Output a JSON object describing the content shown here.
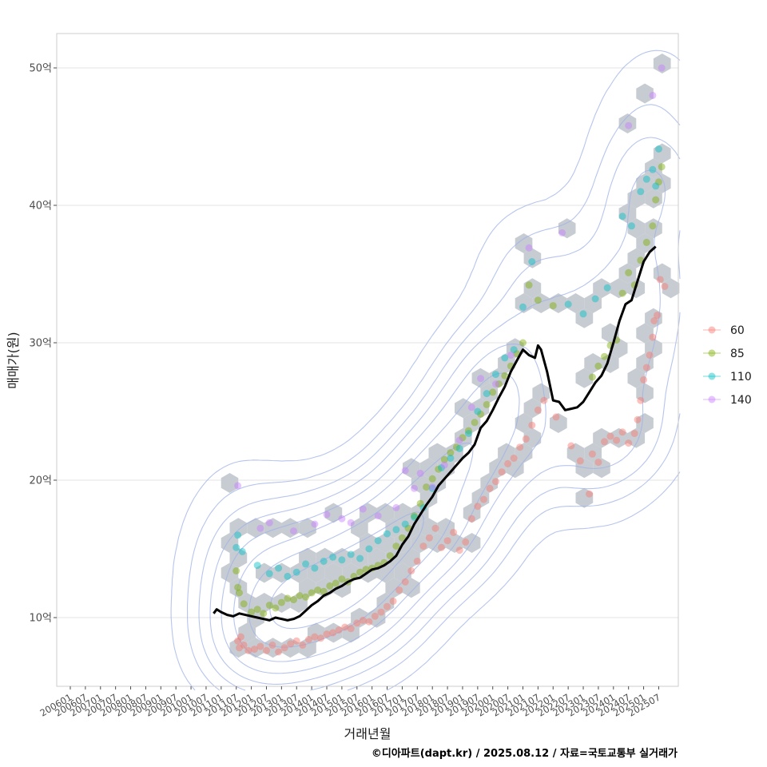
{
  "chart_data": {
    "type": "scatter",
    "xlabel": "거래년월",
    "ylabel": "매매가(원)",
    "caption": "©디아파트(dapt.kr) / 2025.08.12 / 자료=국토교통부 실거래가",
    "x_ticks": [
      "200601",
      "200607",
      "200701",
      "200707",
      "200801",
      "200807",
      "200901",
      "200907",
      "201001",
      "201007",
      "201101",
      "201107",
      "201201",
      "201207",
      "201301",
      "201307",
      "201401",
      "201407",
      "201501",
      "201507",
      "201601",
      "201607",
      "201701",
      "201707",
      "201801",
      "201807",
      "201901",
      "201907",
      "202001",
      "202007",
      "202101",
      "202107",
      "202201",
      "202207",
      "202301",
      "202307",
      "202401",
      "202407",
      "202501",
      "202507"
    ],
    "y_ticks": [
      {
        "value": 10,
        "label": "10억"
      },
      {
        "value": 20,
        "label": "20억"
      },
      {
        "value": 30,
        "label": "30억"
      },
      {
        "value": 40,
        "label": "40억"
      },
      {
        "value": 50,
        "label": "50억"
      }
    ],
    "ylim": [
      5,
      52.5
    ],
    "xlim": [
      2005.55,
      2026.15
    ],
    "grid": "horizontal major only",
    "legend_position": "right",
    "legend_symbol": "semi-transparent circle",
    "series": [
      {
        "name": "60",
        "color": "#f8766d",
        "points": [
          [
            2011.55,
            8.3
          ],
          [
            2011.6,
            7.8
          ],
          [
            2011.65,
            8.6
          ],
          [
            2011.75,
            8.0
          ],
          [
            2011.9,
            7.6
          ],
          [
            2012.1,
            7.7
          ],
          [
            2012.3,
            7.9
          ],
          [
            2012.5,
            7.6
          ],
          [
            2012.7,
            8.0
          ],
          [
            2012.9,
            7.5
          ],
          [
            2013.1,
            7.8
          ],
          [
            2013.3,
            8.1
          ],
          [
            2013.5,
            8.3
          ],
          [
            2013.7,
            8.0
          ],
          [
            2013.9,
            8.4
          ],
          [
            2014.1,
            8.6
          ],
          [
            2014.3,
            8.5
          ],
          [
            2014.5,
            8.8
          ],
          [
            2014.7,
            8.9
          ],
          [
            2014.9,
            9.1
          ],
          [
            2015.1,
            9.3
          ],
          [
            2015.3,
            9.2
          ],
          [
            2015.5,
            9.6
          ],
          [
            2015.7,
            9.8
          ],
          [
            2015.9,
            9.7
          ],
          [
            2016.1,
            10.1
          ],
          [
            2016.3,
            10.4
          ],
          [
            2016.5,
            10.8
          ],
          [
            2016.7,
            11.2
          ],
          [
            2016.9,
            12.0
          ],
          [
            2017.1,
            12.6
          ],
          [
            2017.3,
            13.4
          ],
          [
            2017.5,
            14.1
          ],
          [
            2017.7,
            15.2
          ],
          [
            2017.9,
            15.8
          ],
          [
            2018.1,
            16.5
          ],
          [
            2018.3,
            15.1
          ],
          [
            2018.5,
            15.6
          ],
          [
            2018.7,
            16.2
          ],
          [
            2018.9,
            14.9
          ],
          [
            2019.1,
            15.5
          ],
          [
            2019.3,
            17.2
          ],
          [
            2019.5,
            18.1
          ],
          [
            2019.7,
            18.6
          ],
          [
            2019.9,
            19.4
          ],
          [
            2020.1,
            19.9
          ],
          [
            2020.3,
            20.6
          ],
          [
            2020.5,
            21.2
          ],
          [
            2020.7,
            21.6
          ],
          [
            2020.9,
            22.4
          ],
          [
            2021.1,
            23.0
          ],
          [
            2021.3,
            24.0
          ],
          [
            2021.5,
            25.1
          ],
          [
            2021.7,
            25.8
          ],
          [
            2022.1,
            24.6
          ],
          [
            2022.6,
            22.5
          ],
          [
            2022.9,
            21.4
          ],
          [
            2023.2,
            19.0
          ],
          [
            2023.3,
            21.9
          ],
          [
            2023.5,
            21.3
          ],
          [
            2023.7,
            22.8
          ],
          [
            2023.9,
            23.2
          ],
          [
            2024.1,
            22.9
          ],
          [
            2024.3,
            23.5
          ],
          [
            2024.5,
            22.7
          ],
          [
            2024.7,
            23.4
          ],
          [
            2024.8,
            24.4
          ],
          [
            2024.9,
            25.8
          ],
          [
            2025.0,
            27.3
          ],
          [
            2025.1,
            28.2
          ],
          [
            2025.2,
            29.1
          ],
          [
            2025.3,
            30.4
          ],
          [
            2025.35,
            31.6
          ],
          [
            2025.45,
            32.0
          ],
          [
            2025.55,
            34.6
          ],
          [
            2025.7,
            34.1
          ]
        ]
      },
      {
        "name": "85",
        "color": "#7cae00",
        "points": [
          [
            2011.5,
            13.4
          ],
          [
            2011.55,
            12.2
          ],
          [
            2011.6,
            11.8
          ],
          [
            2011.75,
            11.0
          ],
          [
            2012.0,
            10.4
          ],
          [
            2012.2,
            10.6
          ],
          [
            2012.4,
            10.3
          ],
          [
            2012.6,
            10.9
          ],
          [
            2012.8,
            10.7
          ],
          [
            2013.0,
            11.1
          ],
          [
            2013.2,
            11.4
          ],
          [
            2013.4,
            11.3
          ],
          [
            2013.6,
            11.6
          ],
          [
            2013.8,
            11.5
          ],
          [
            2014.0,
            11.8
          ],
          [
            2014.2,
            12.0
          ],
          [
            2014.4,
            11.9
          ],
          [
            2014.6,
            12.3
          ],
          [
            2014.8,
            12.5
          ],
          [
            2015.0,
            12.8
          ],
          [
            2015.2,
            12.6
          ],
          [
            2015.4,
            13.0
          ],
          [
            2015.6,
            13.3
          ],
          [
            2015.8,
            13.5
          ],
          [
            2016.0,
            13.6
          ],
          [
            2016.2,
            13.8
          ],
          [
            2016.4,
            14.0
          ],
          [
            2016.6,
            14.5
          ],
          [
            2016.8,
            15.2
          ],
          [
            2017.0,
            15.8
          ],
          [
            2017.2,
            16.5
          ],
          [
            2017.4,
            17.4
          ],
          [
            2017.6,
            18.3
          ],
          [
            2017.8,
            19.5
          ],
          [
            2018.0,
            20.1
          ],
          [
            2018.2,
            20.8
          ],
          [
            2018.4,
            21.5
          ],
          [
            2018.6,
            22.0
          ],
          [
            2018.8,
            22.4
          ],
          [
            2019.0,
            23.1
          ],
          [
            2019.2,
            23.6
          ],
          [
            2019.4,
            24.2
          ],
          [
            2019.6,
            24.8
          ],
          [
            2019.8,
            25.5
          ],
          [
            2020.0,
            26.4
          ],
          [
            2020.2,
            27.0
          ],
          [
            2020.4,
            27.6
          ],
          [
            2020.6,
            28.3
          ],
          [
            2020.8,
            29.2
          ],
          [
            2021.0,
            30.0
          ],
          [
            2021.2,
            34.2
          ],
          [
            2021.5,
            33.1
          ],
          [
            2022.0,
            32.7
          ],
          [
            2023.3,
            27.5
          ],
          [
            2023.5,
            28.3
          ],
          [
            2023.7,
            29.0
          ],
          [
            2023.9,
            29.8
          ],
          [
            2024.1,
            30.2
          ],
          [
            2024.3,
            33.6
          ],
          [
            2024.5,
            35.1
          ],
          [
            2024.7,
            34.2
          ],
          [
            2024.9,
            36.0
          ],
          [
            2025.1,
            37.3
          ],
          [
            2025.3,
            38.5
          ],
          [
            2025.4,
            40.4
          ],
          [
            2025.5,
            41.7
          ],
          [
            2025.6,
            42.8
          ]
        ]
      },
      {
        "name": "110",
        "color": "#00bfc4",
        "points": [
          [
            2011.5,
            15.1
          ],
          [
            2011.55,
            16.0
          ],
          [
            2011.7,
            14.8
          ],
          [
            2012.2,
            13.8
          ],
          [
            2012.6,
            13.2
          ],
          [
            2012.9,
            13.6
          ],
          [
            2013.2,
            13.0
          ],
          [
            2013.5,
            13.3
          ],
          [
            2013.8,
            13.9
          ],
          [
            2014.1,
            13.6
          ],
          [
            2014.4,
            14.1
          ],
          [
            2014.7,
            14.4
          ],
          [
            2015.0,
            14.2
          ],
          [
            2015.3,
            14.6
          ],
          [
            2015.6,
            14.3
          ],
          [
            2015.9,
            15.0
          ],
          [
            2016.2,
            15.6
          ],
          [
            2016.5,
            16.1
          ],
          [
            2016.8,
            16.4
          ],
          [
            2017.1,
            16.8
          ],
          [
            2017.4,
            17.3
          ],
          [
            2017.7,
            18.0
          ],
          [
            2018.0,
            19.4
          ],
          [
            2018.3,
            20.9
          ],
          [
            2018.6,
            21.6
          ],
          [
            2018.9,
            22.3
          ],
          [
            2019.2,
            23.4
          ],
          [
            2019.5,
            25.0
          ],
          [
            2019.8,
            26.3
          ],
          [
            2020.1,
            27.7
          ],
          [
            2020.4,
            28.9
          ],
          [
            2020.7,
            29.5
          ],
          [
            2021.0,
            32.6
          ],
          [
            2021.3,
            35.9
          ],
          [
            2022.5,
            32.8
          ],
          [
            2023.0,
            32.1
          ],
          [
            2023.4,
            33.2
          ],
          [
            2023.8,
            34.0
          ],
          [
            2024.3,
            39.2
          ],
          [
            2024.6,
            38.5
          ],
          [
            2024.9,
            41.0
          ],
          [
            2025.1,
            41.9
          ],
          [
            2025.3,
            42.6
          ],
          [
            2025.4,
            41.4
          ],
          [
            2025.5,
            44.1
          ]
        ]
      },
      {
        "name": "140",
        "color": "#c77cff",
        "points": [
          [
            2011.55,
            19.6
          ],
          [
            2012.3,
            16.5
          ],
          [
            2012.6,
            16.9
          ],
          [
            2013.4,
            16.3
          ],
          [
            2014.1,
            16.8
          ],
          [
            2014.5,
            17.5
          ],
          [
            2015.0,
            17.2
          ],
          [
            2015.3,
            16.9
          ],
          [
            2015.7,
            17.9
          ],
          [
            2016.2,
            17.4
          ],
          [
            2016.8,
            18.0
          ],
          [
            2017.1,
            20.7
          ],
          [
            2017.4,
            19.4
          ],
          [
            2017.6,
            20.5
          ],
          [
            2018.0,
            19.5
          ],
          [
            2018.4,
            21.1
          ],
          [
            2018.9,
            22.9
          ],
          [
            2019.3,
            25.3
          ],
          [
            2019.6,
            27.4
          ],
          [
            2020.1,
            27.0
          ],
          [
            2020.6,
            29.1
          ],
          [
            2021.2,
            36.9
          ],
          [
            2022.3,
            38.0
          ],
          [
            2024.5,
            45.8
          ],
          [
            2025.3,
            48.0
          ],
          [
            2025.6,
            50.0
          ]
        ]
      }
    ],
    "median_line": [
      [
        2010.75,
        10.3
      ],
      [
        2010.85,
        10.6
      ],
      [
        2011.0,
        10.4
      ],
      [
        2011.2,
        10.2
      ],
      [
        2011.4,
        10.1
      ],
      [
        2011.6,
        10.3
      ],
      [
        2011.8,
        10.2
      ],
      [
        2012.0,
        10.1
      ],
      [
        2012.2,
        10.0
      ],
      [
        2012.4,
        9.9
      ],
      [
        2012.6,
        9.8
      ],
      [
        2012.8,
        10.0
      ],
      [
        2013.0,
        9.9
      ],
      [
        2013.2,
        9.8
      ],
      [
        2013.4,
        9.9
      ],
      [
        2013.6,
        10.1
      ],
      [
        2013.8,
        10.5
      ],
      [
        2014.0,
        10.9
      ],
      [
        2014.2,
        11.2
      ],
      [
        2014.4,
        11.6
      ],
      [
        2014.6,
        11.8
      ],
      [
        2014.8,
        12.1
      ],
      [
        2015.0,
        12.3
      ],
      [
        2015.2,
        12.6
      ],
      [
        2015.4,
        12.8
      ],
      [
        2015.6,
        12.9
      ],
      [
        2015.8,
        13.2
      ],
      [
        2016.0,
        13.5
      ],
      [
        2016.2,
        13.6
      ],
      [
        2016.4,
        13.8
      ],
      [
        2016.6,
        14.1
      ],
      [
        2016.8,
        14.5
      ],
      [
        2017.0,
        15.3
      ],
      [
        2017.2,
        15.9
      ],
      [
        2017.4,
        16.8
      ],
      [
        2017.6,
        17.5
      ],
      [
        2017.8,
        18.2
      ],
      [
        2018.0,
        18.8
      ],
      [
        2018.2,
        19.6
      ],
      [
        2018.4,
        20.1
      ],
      [
        2018.6,
        20.6
      ],
      [
        2018.8,
        21.1
      ],
      [
        2019.0,
        21.6
      ],
      [
        2019.2,
        22.0
      ],
      [
        2019.4,
        22.6
      ],
      [
        2019.6,
        23.8
      ],
      [
        2019.8,
        24.3
      ],
      [
        2020.0,
        25.1
      ],
      [
        2020.2,
        26.0
      ],
      [
        2020.4,
        26.8
      ],
      [
        2020.6,
        27.9
      ],
      [
        2020.8,
        28.7
      ],
      [
        2021.0,
        29.5
      ],
      [
        2021.2,
        29.1
      ],
      [
        2021.4,
        28.9
      ],
      [
        2021.5,
        29.8
      ],
      [
        2021.6,
        29.5
      ],
      [
        2021.8,
        27.9
      ],
      [
        2022.0,
        25.8
      ],
      [
        2022.2,
        25.7
      ],
      [
        2022.4,
        25.1
      ],
      [
        2022.6,
        25.2
      ],
      [
        2022.8,
        25.3
      ],
      [
        2023.0,
        25.7
      ],
      [
        2023.2,
        26.4
      ],
      [
        2023.4,
        27.1
      ],
      [
        2023.6,
        27.6
      ],
      [
        2023.8,
        28.5
      ],
      [
        2024.0,
        30.0
      ],
      [
        2024.2,
        31.6
      ],
      [
        2024.4,
        32.8
      ],
      [
        2024.6,
        33.1
      ],
      [
        2024.8,
        34.5
      ],
      [
        2025.0,
        35.9
      ],
      [
        2025.2,
        36.6
      ],
      [
        2025.4,
        37.0
      ]
    ]
  }
}
